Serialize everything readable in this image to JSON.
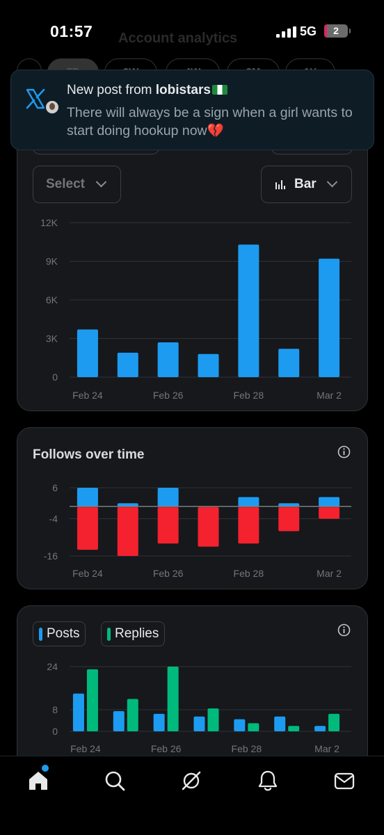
{
  "status_bar": {
    "time": "01:57",
    "network": "5G",
    "battery": "2"
  },
  "page": {
    "title": "Account analytics",
    "ranges": [
      "7D",
      "2W",
      "4W",
      "3M",
      "1Y"
    ]
  },
  "notification": {
    "prefix": "New post from ",
    "author": "lobistars",
    "body": "There will always be a sign when a girl wants to start doing hookup now💔"
  },
  "impressions_card": {
    "select_label": "Select",
    "chart_type_label": "Bar",
    "chart_data": {
      "type": "bar",
      "categories": [
        "Feb 24",
        "Feb 25",
        "Feb 26",
        "Feb 27",
        "Feb 28",
        "Mar 1",
        "Mar 2"
      ],
      "x_tick_labels": [
        "Feb 24",
        "Feb 26",
        "Feb 28",
        "Mar 2"
      ],
      "values": [
        3700,
        1900,
        2700,
        1800,
        10300,
        2200,
        9200
      ],
      "y_ticks": [
        "12K",
        "9K",
        "6K",
        "3K",
        "0"
      ],
      "ylim": [
        0,
        12000
      ],
      "color": "#1d9bf0"
    }
  },
  "follows_card": {
    "title": "Follows over time",
    "chart_data": {
      "type": "bar",
      "categories": [
        "Feb 24",
        "Feb 25",
        "Feb 26",
        "Feb 27",
        "Feb 28",
        "Mar 1",
        "Mar 2"
      ],
      "x_tick_labels": [
        "Feb 24",
        "Feb 26",
        "Feb 28",
        "Mar 2"
      ],
      "series": [
        {
          "values": [
            6,
            1,
            6,
            0,
            3,
            1,
            3
          ],
          "color": "#1d9bf0"
        },
        {
          "values": [
            -14,
            -16,
            -12,
            -13,
            -12,
            -8,
            -4
          ],
          "color": "#f4212e"
        }
      ],
      "y_ticks": [
        "6",
        "-4",
        "-16"
      ],
      "ylim": [
        -16,
        6
      ]
    }
  },
  "posts_card": {
    "legend": [
      {
        "label": "Posts",
        "color": "#1d9bf0"
      },
      {
        "label": "Replies",
        "color": "#00ba7c"
      }
    ],
    "chart_data": {
      "type": "bar",
      "categories": [
        "Feb 24",
        "Feb 25",
        "Feb 26",
        "Feb 27",
        "Feb 28",
        "Mar 1",
        "Mar 2"
      ],
      "x_tick_labels": [
        "Feb 24",
        "Feb 26",
        "Feb 28",
        "Mar 2"
      ],
      "series": [
        {
          "name": "Posts",
          "values": [
            14,
            7.5,
            6.5,
            5.5,
            4.5,
            5.5,
            2
          ],
          "color": "#1d9bf0"
        },
        {
          "name": "Replies",
          "values": [
            23,
            12,
            24,
            8.5,
            3,
            2,
            6.5
          ],
          "color": "#00ba7c"
        }
      ],
      "y_ticks": [
        "24",
        "8",
        "0"
      ],
      "ylim": [
        0,
        24
      ]
    }
  },
  "nav": [
    "home-icon",
    "search-icon",
    "grok-icon",
    "notifications-icon",
    "messages-icon"
  ]
}
